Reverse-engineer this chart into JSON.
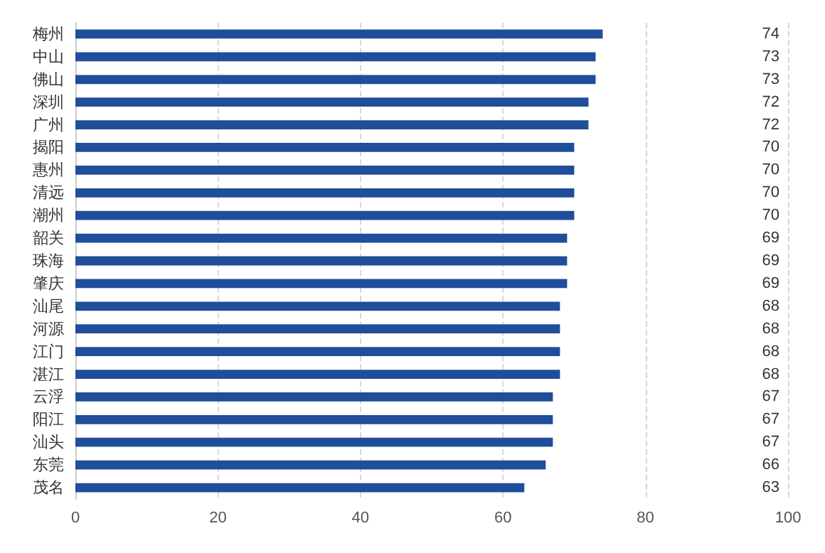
{
  "chart_data": {
    "type": "bar",
    "orientation": "horizontal",
    "categories": [
      "梅州",
      "中山",
      "佛山",
      "深圳",
      "广州",
      "揭阳",
      "惠州",
      "清远",
      "潮州",
      "韶关",
      "珠海",
      "肇庆",
      "汕尾",
      "河源",
      "江门",
      "湛江",
      "云浮",
      "阳江",
      "汕头",
      "东莞",
      "茂名"
    ],
    "values": [
      74,
      73,
      73,
      72,
      72,
      70,
      70,
      70,
      70,
      69,
      69,
      69,
      68,
      68,
      68,
      68,
      67,
      67,
      67,
      66,
      63
    ],
    "color": "#1f4e9a",
    "xlim": [
      0,
      100
    ],
    "xticks": [
      0,
      20,
      40,
      60,
      80,
      100
    ],
    "grid": "x",
    "data_labels": true
  }
}
